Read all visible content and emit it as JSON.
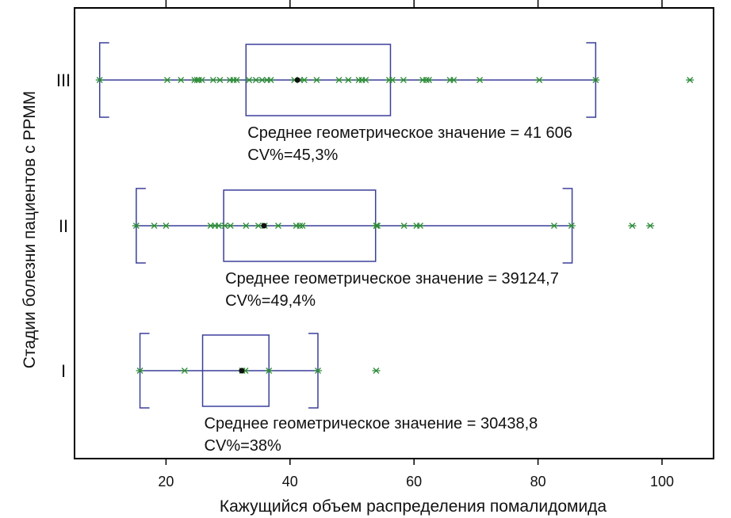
{
  "chart_data": {
    "type": "box",
    "xlabel": "Кажущийся объем распределения помалидомида",
    "ylabel": "Стадии болезни пациентов с РРММ",
    "xlim": [
      5,
      105
    ],
    "x_ticks": [
      20,
      40,
      60,
      80,
      100
    ],
    "x_tick_labels": [
      "20",
      "40",
      "60",
      "80",
      "100"
    ],
    "grid": false,
    "colors": {
      "box": "#3b3f9a",
      "points": "#2e8b3a",
      "mean": "#111111",
      "frame": "#000000"
    },
    "categories": [
      "III",
      "II",
      "I"
    ],
    "groups": [
      {
        "label": "III",
        "whisker_low": 9.3,
        "q1": 32.9,
        "q3": 56.2,
        "whisker_high": 89.3,
        "mean": 41.2,
        "points": [
          9.3,
          20.2,
          22.4,
          24.6,
          25.0,
          25.3,
          25.8,
          27.6,
          28.7,
          30.3,
          30.9,
          31.4,
          33.4,
          34.5,
          35.5,
          36.3,
          36.9,
          40.7,
          41.6,
          42.3,
          44.3,
          47.9,
          49.4,
          51.1,
          51.6,
          52.2,
          56.0,
          56.5,
          58.3,
          61.4,
          62.0,
          62.4,
          65.8,
          66.4,
          70.6,
          80.2,
          89.3,
          104.5
        ],
        "annotation_line1": "Среднее геометрическое значение = 41 606",
        "annotation_line2": "CV%=45,3%"
      },
      {
        "label": "II",
        "whisker_low": 15.2,
        "q1": 29.3,
        "q3": 53.8,
        "whisker_high": 85.5,
        "mean": 35.8,
        "points": [
          15.2,
          18.1,
          20.0,
          27.2,
          27.9,
          28.5,
          29.5,
          30.4,
          32.9,
          34.9,
          35.9,
          38.1,
          41.0,
          41.6,
          42.0,
          53.9,
          54.1,
          58.4,
          60.4,
          61.0,
          82.6,
          85.4,
          95.2,
          98.1
        ],
        "annotation_line1": "Среднее геометрическое значение = 39124,7",
        "annotation_line2": "CV%=49,4%"
      },
      {
        "label": "I",
        "whisker_low": 15.8,
        "q1": 25.9,
        "q3": 36.6,
        "whisker_high": 44.5,
        "mean": 32.2,
        "points": [
          15.8,
          23.0,
          32.3,
          32.8,
          36.6,
          44.5,
          53.9
        ],
        "annotation_line1": "Среднее геометрическое значение = 30438,8",
        "annotation_line2": "CV%=38%"
      }
    ]
  }
}
